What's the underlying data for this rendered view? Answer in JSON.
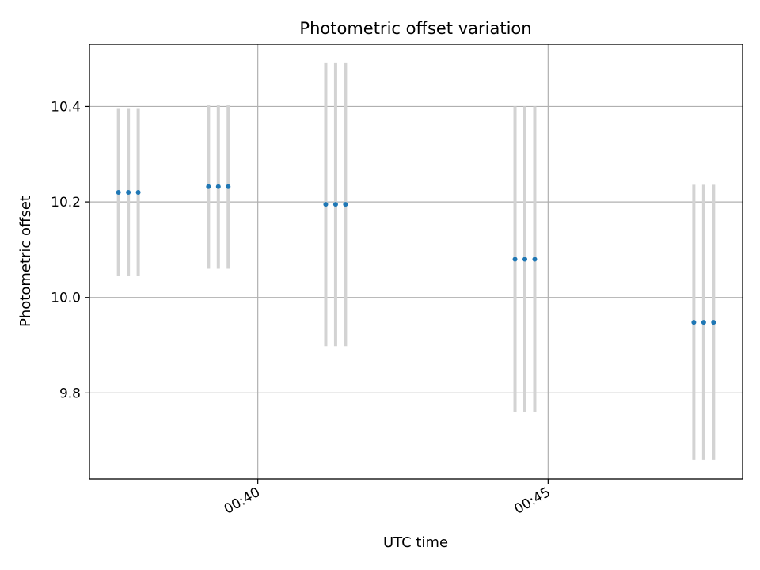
{
  "chart_data": {
    "type": "scatter",
    "title": "Photometric offset variation",
    "xlabel": "UTC time",
    "ylabel": "Photometric offset",
    "x_tick_labels": [
      "00:40",
      "00:45"
    ],
    "x_tick_values_min": [
      40,
      45
    ],
    "y_tick_labels": [
      "9.8",
      "10.0",
      "10.2",
      "10.4"
    ],
    "y_tick_values": [
      9.8,
      10.0,
      10.2,
      10.4
    ],
    "xlim_min": [
      37.1,
      48.35
    ],
    "ylim": [
      9.62,
      10.53
    ],
    "grid": true,
    "series": [
      {
        "point_color": "#1f77b4",
        "errorbar_color": "#d3d3d3",
        "points": [
          {
            "x_min": 37.6,
            "y": 10.22,
            "yerr": 0.175
          },
          {
            "x_min": 37.77,
            "y": 10.22,
            "yerr": 0.175
          },
          {
            "x_min": 37.94,
            "y": 10.22,
            "yerr": 0.175
          },
          {
            "x_min": 39.15,
            "y": 10.232,
            "yerr": 0.172
          },
          {
            "x_min": 39.32,
            "y": 10.232,
            "yerr": 0.172
          },
          {
            "x_min": 39.49,
            "y": 10.232,
            "yerr": 0.172
          },
          {
            "x_min": 41.17,
            "y": 10.195,
            "yerr": 0.297
          },
          {
            "x_min": 41.34,
            "y": 10.195,
            "yerr": 0.297
          },
          {
            "x_min": 41.51,
            "y": 10.195,
            "yerr": 0.297
          },
          {
            "x_min": 44.43,
            "y": 10.08,
            "yerr": 0.32
          },
          {
            "x_min": 44.6,
            "y": 10.08,
            "yerr": 0.32
          },
          {
            "x_min": 44.77,
            "y": 10.08,
            "yerr": 0.32
          },
          {
            "x_min": 47.51,
            "y": 9.948,
            "yerr": 0.288
          },
          {
            "x_min": 47.68,
            "y": 9.948,
            "yerr": 0.288
          },
          {
            "x_min": 47.85,
            "y": 9.948,
            "yerr": 0.288
          }
        ]
      }
    ]
  }
}
